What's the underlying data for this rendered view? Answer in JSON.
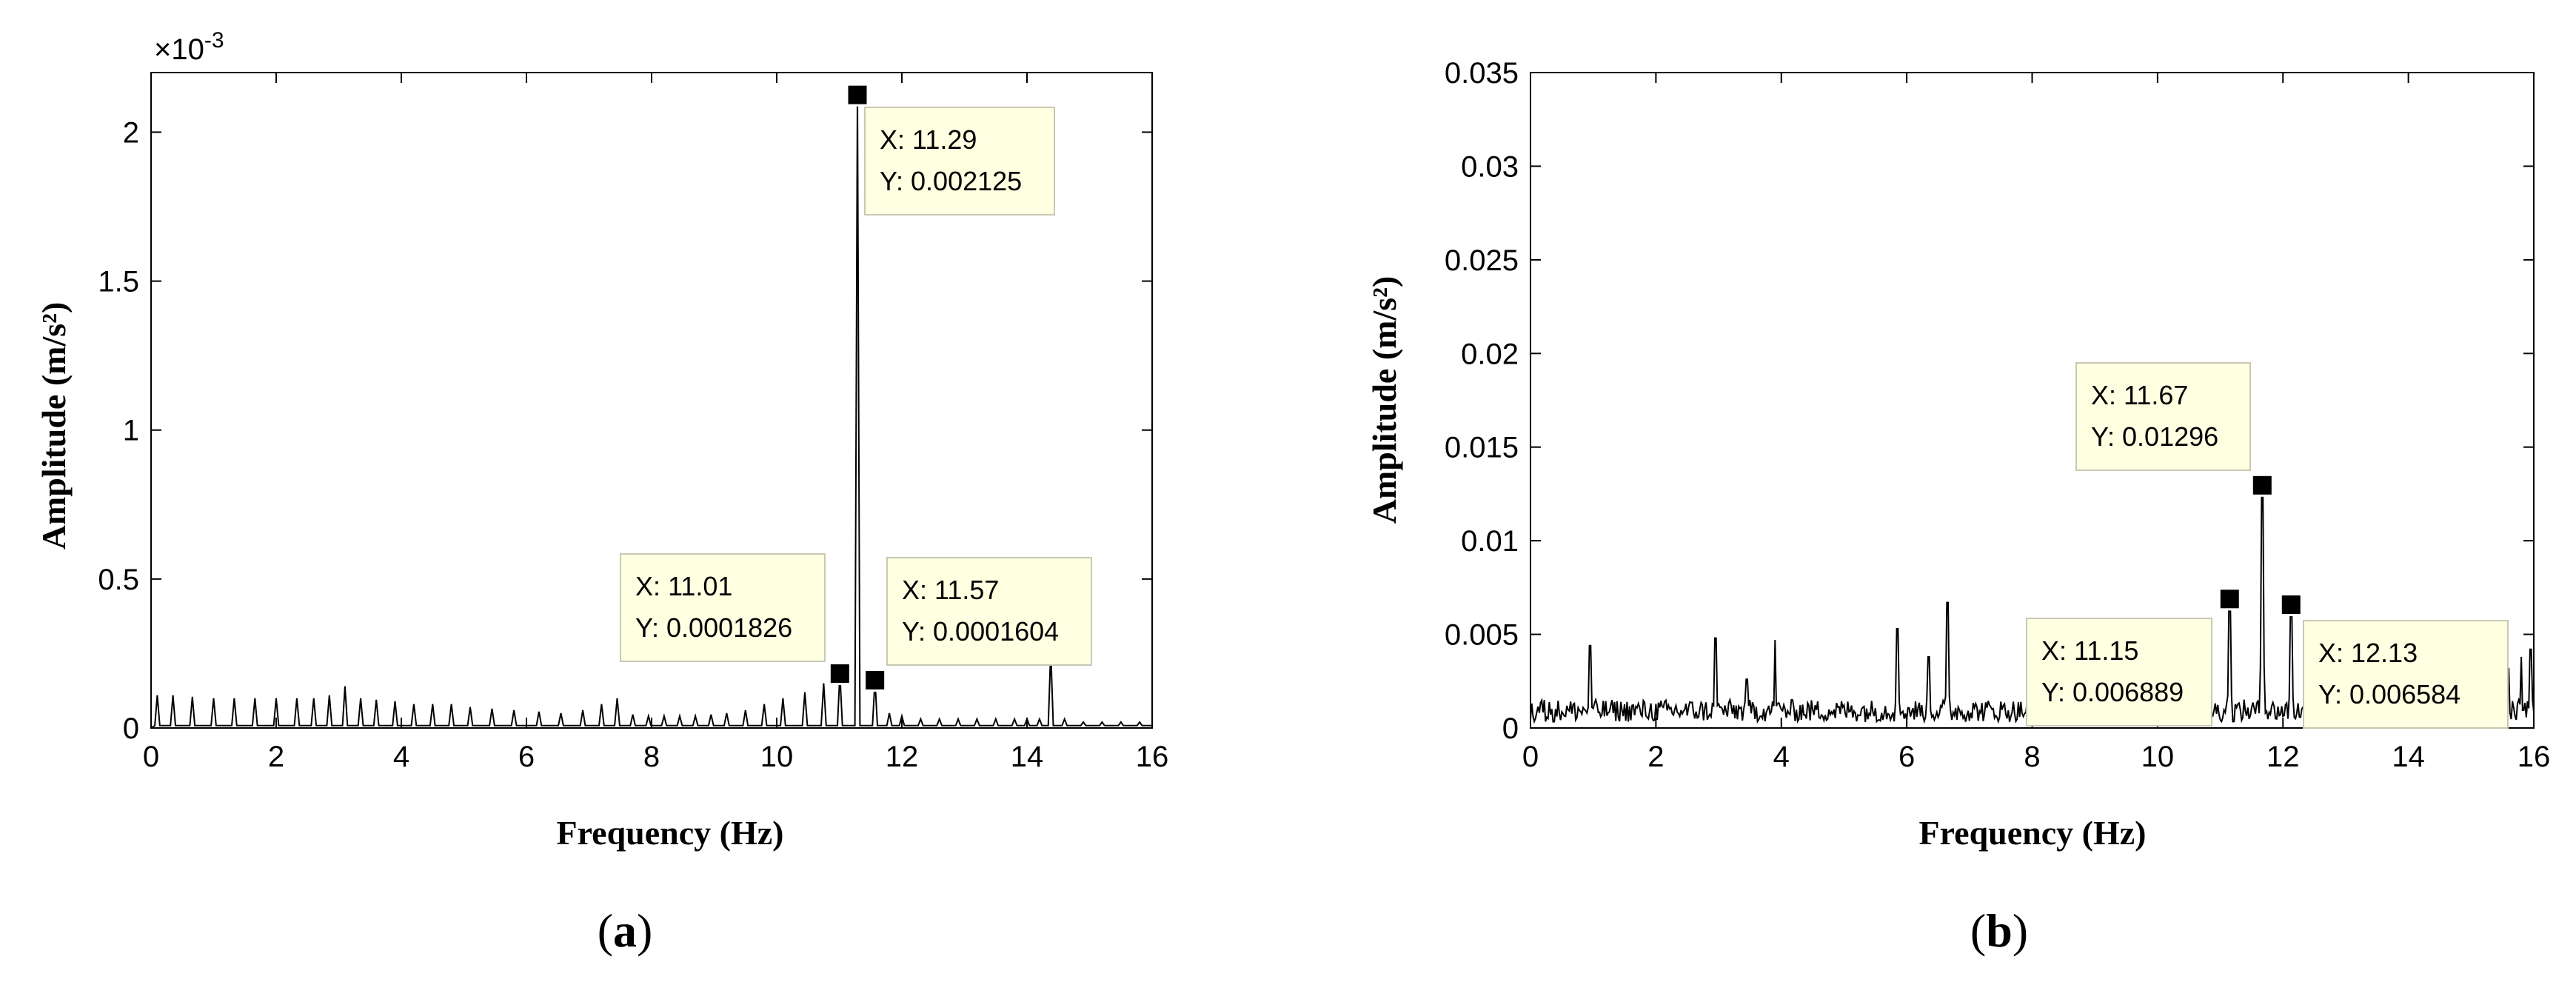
{
  "figure": {
    "panels": [
      {
        "caption_open": "(",
        "caption_letter": "a",
        "caption_close": ")",
        "xlabel": "Frequency (Hz)",
        "ylabel": "Amplitude (m/s²)",
        "exponent_label": "×10",
        "exponent_power": "-3"
      },
      {
        "caption_open": "(",
        "caption_letter": "b",
        "caption_close": ")",
        "xlabel": "Frequency (Hz)",
        "ylabel": "Amplitude (m/s²)"
      }
    ],
    "colors": {
      "line": "#000000",
      "datatip_fill": "#ffffe1",
      "datatip_border": "#c8c8b4"
    }
  },
  "chart_data": [
    {
      "type": "line",
      "title": "",
      "xlabel": "Frequency (Hz)",
      "ylabel": "Amplitude (m/s²)",
      "xlim": [
        0,
        16
      ],
      "ylim": [
        0,
        0.0022
      ],
      "xticks": [
        0,
        2,
        4,
        6,
        8,
        10,
        12,
        14,
        16
      ],
      "xtick_labels": [
        "0",
        "2",
        "4",
        "6",
        "8",
        "10",
        "12",
        "14",
        "16"
      ],
      "yticks": [
        0,
        0.0005,
        0.001,
        0.0015,
        0.002
      ],
      "ytick_labels": [
        "0",
        "0.5",
        "1",
        "1.5",
        "2"
      ],
      "y_multiplier": "×10^-3",
      "grid": false,
      "series": [
        {
          "x": [
            0.1,
            0.35,
            0.66,
            1.0,
            1.33,
            1.66,
            2.0,
            2.33,
            2.6,
            2.85,
            3.1,
            3.35,
            3.6,
            3.9,
            4.2,
            4.5,
            4.8,
            5.1,
            5.45,
            5.8,
            6.2,
            6.55,
            6.9,
            7.2,
            7.45,
            7.7,
            7.95,
            8.2,
            8.45,
            8.7,
            8.95,
            9.2,
            9.5,
            9.8,
            10.1,
            10.45,
            10.75,
            11.01,
            11.29,
            11.57,
            11.8,
            12.0,
            12.3,
            12.6,
            12.9,
            13.2,
            13.5,
            13.8,
            14.0,
            14.2,
            14.38,
            14.6,
            14.9,
            15.2,
            15.5,
            15.8
          ],
          "y": [
            0.00011,
            0.00011,
            0.000105,
            0.0001,
            0.0001,
            0.0001,
            0.0001,
            0.0001,
            0.0001,
            0.00011,
            0.00014,
            0.0001,
            9.5e-05,
            9e-05,
            8e-05,
            8e-05,
            8e-05,
            7e-05,
            6.5e-05,
            6e-05,
            5.5e-05,
            5e-05,
            6e-05,
            8e-05,
            0.0001,
            4.5e-05,
            4e-05,
            4e-05,
            4e-05,
            4e-05,
            4.5e-05,
            5e-05,
            6e-05,
            8e-05,
            0.0001,
            0.00012,
            0.00015,
            0.0001826,
            0.002125,
            0.0001604,
            5e-05,
            4e-05,
            3e-05,
            3e-05,
            3e-05,
            3e-05,
            3e-05,
            3e-05,
            3e-05,
            3e-05,
            0.00026,
            3e-05,
            2e-05,
            2e-05,
            2e-05,
            2e-05
          ]
        }
      ],
      "datatips": [
        {
          "x": 11.29,
          "y": 0.002125,
          "x_text": "X: 11.29",
          "y_text": "Y: 0.002125"
        },
        {
          "x": 11.01,
          "y": 0.0001826,
          "x_text": "X: 11.01",
          "y_text": "Y: 0.0001826"
        },
        {
          "x": 11.57,
          "y": 0.0001604,
          "x_text": "X: 11.57",
          "y_text": "Y: 0.0001604"
        }
      ]
    },
    {
      "type": "line",
      "title": "",
      "xlabel": "Frequency (Hz)",
      "ylabel": "Amplitude (m/s²)",
      "xlim": [
        0,
        16
      ],
      "ylim": [
        0,
        0.035
      ],
      "xticks": [
        0,
        2,
        4,
        6,
        8,
        10,
        12,
        14,
        16
      ],
      "xtick_labels": [
        "0",
        "2",
        "4",
        "6",
        "8",
        "10",
        "12",
        "14",
        "16"
      ],
      "yticks": [
        0,
        0.005,
        0.01,
        0.015,
        0.02,
        0.025,
        0.03,
        0.035
      ],
      "ytick_labels": [
        "0",
        "0.005",
        "0.01",
        "0.015",
        "0.02",
        "0.025",
        "0.03",
        "0.035"
      ],
      "grid": false,
      "noise": {
        "xstep": 0.02,
        "baseline": 0.0008,
        "amplitude": 0.0012
      },
      "series": [
        {
          "peaks_x": [
            0.95,
            2.95,
            3.45,
            3.9,
            5.85,
            6.35,
            6.65,
            11.15,
            11.67,
            12.13,
            15.6,
            15.8,
            15.95
          ],
          "peaks_y": [
            0.0044,
            0.0048,
            0.0026,
            0.0047,
            0.0053,
            0.0038,
            0.0067,
            0.006889,
            0.01296,
            0.006584,
            0.0032,
            0.0038,
            0.0042
          ]
        }
      ],
      "datatips": [
        {
          "x": 11.67,
          "y": 0.01296,
          "x_text": "X: 11.67",
          "y_text": "Y: 0.01296"
        },
        {
          "x": 11.15,
          "y": 0.006889,
          "x_text": "X: 11.15",
          "y_text": "Y: 0.006889"
        },
        {
          "x": 12.13,
          "y": 0.006584,
          "x_text": "X: 12.13",
          "y_text": "Y: 0.006584"
        }
      ]
    }
  ]
}
